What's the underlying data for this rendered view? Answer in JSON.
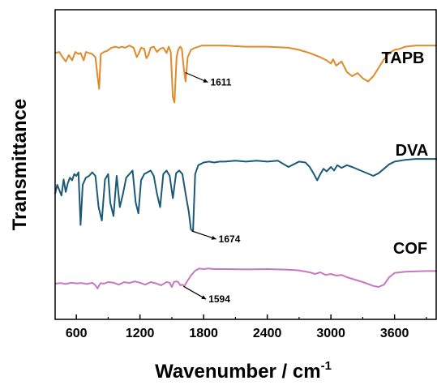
{
  "chart_data": {
    "type": "line",
    "title": "",
    "xlabel": "Wavenumber / cm",
    "xlabel_sup": "-1",
    "ylabel": "Transmittance",
    "xlim": [
      400,
      4000
    ],
    "xticks": [
      600,
      1200,
      1800,
      2400,
      3000,
      3600
    ],
    "y_ticks_shown": false,
    "grid": false,
    "series": [
      {
        "name": "TAPB",
        "color": "#e08a2a",
        "x": [
          400,
          440,
          470,
          500,
          530,
          560,
          590,
          620,
          640,
          670,
          690,
          720,
          750,
          780,
          800,
          815,
          830,
          860,
          890,
          930,
          970,
          1000,
          1030,
          1060,
          1100,
          1140,
          1170,
          1190,
          1210,
          1240,
          1260,
          1280,
          1300,
          1330,
          1360,
          1390,
          1420,
          1450,
          1470,
          1490,
          1510,
          1525,
          1545,
          1560,
          1580,
          1595,
          1615,
          1630,
          1650,
          1680,
          1720,
          1780,
          1850,
          2000,
          2200,
          2400,
          2600,
          2700,
          2800,
          2900,
          2960,
          3000,
          3020,
          3050,
          3100,
          3150,
          3200,
          3250,
          3300,
          3350,
          3400,
          3450,
          3500,
          3550,
          3600,
          3650,
          3700,
          3800,
          3900,
          4000
        ],
        "y": [
          0.92,
          0.93,
          0.88,
          0.84,
          0.9,
          0.85,
          0.93,
          0.91,
          0.92,
          0.85,
          0.93,
          0.92,
          0.91,
          0.88,
          0.7,
          0.58,
          0.91,
          0.93,
          0.94,
          0.97,
          0.98,
          0.97,
          0.98,
          0.97,
          0.99,
          0.97,
          0.88,
          0.92,
          0.97,
          0.96,
          0.87,
          0.9,
          0.97,
          0.98,
          0.93,
          0.96,
          0.97,
          0.92,
          0.98,
          0.93,
          0.5,
          0.45,
          0.88,
          0.95,
          0.98,
          0.96,
          0.75,
          0.65,
          0.88,
          0.95,
          0.97,
          0.99,
          0.99,
          0.99,
          0.98,
          0.98,
          0.97,
          0.95,
          0.92,
          0.88,
          0.85,
          0.82,
          0.86,
          0.8,
          0.84,
          0.74,
          0.7,
          0.73,
          0.68,
          0.65,
          0.7,
          0.78,
          0.86,
          0.92,
          0.95,
          0.96,
          0.98,
          0.99,
          0.99,
          0.99
        ]
      },
      {
        "name": "DVA",
        "color": "#1a5a78",
        "x": [
          400,
          420,
          440,
          460,
          480,
          500,
          520,
          540,
          560,
          580,
          600,
          620,
          640,
          660,
          690,
          720,
          750,
          780,
          810,
          840,
          870,
          900,
          920,
          950,
          980,
          1010,
          1040,
          1070,
          1100,
          1130,
          1160,
          1185,
          1210,
          1240,
          1270,
          1300,
          1330,
          1360,
          1390,
          1420,
          1450,
          1480,
          1510,
          1540,
          1570,
          1600,
          1630,
          1660,
          1680,
          1700,
          1720,
          1750,
          1800,
          1850,
          1900,
          1950,
          2000,
          2100,
          2200,
          2300,
          2400,
          2500,
          2600,
          2650,
          2700,
          2760,
          2800,
          2840,
          2870,
          2900,
          2930,
          2960,
          3000,
          3030,
          3060,
          3100,
          3150,
          3200,
          3300,
          3400,
          3450,
          3500,
          3550,
          3600,
          3700,
          3800,
          3900,
          4000
        ],
        "y": [
          0.6,
          0.7,
          0.64,
          0.58,
          0.76,
          0.62,
          0.72,
          0.78,
          0.75,
          0.82,
          0.8,
          0.84,
          0.25,
          0.7,
          0.78,
          0.8,
          0.84,
          0.8,
          0.45,
          0.3,
          0.76,
          0.82,
          0.5,
          0.35,
          0.8,
          0.45,
          0.6,
          0.78,
          0.82,
          0.86,
          0.5,
          0.38,
          0.75,
          0.82,
          0.84,
          0.86,
          0.8,
          0.6,
          0.45,
          0.82,
          0.86,
          0.8,
          0.55,
          0.83,
          0.86,
          0.82,
          0.6,
          0.4,
          0.2,
          0.18,
          0.82,
          0.92,
          0.95,
          0.96,
          0.95,
          0.96,
          0.96,
          0.97,
          0.96,
          0.97,
          0.96,
          0.97,
          0.9,
          0.93,
          0.96,
          0.95,
          0.9,
          0.82,
          0.75,
          0.82,
          0.88,
          0.85,
          0.9,
          0.86,
          0.92,
          0.89,
          0.92,
          0.9,
          0.85,
          0.8,
          0.83,
          0.88,
          0.93,
          0.96,
          0.98,
          0.99,
          0.99,
          0.99
        ]
      },
      {
        "name": "COF",
        "color": "#c678c0",
        "x": [
          400,
          450,
          500,
          550,
          600,
          650,
          700,
          750,
          780,
          800,
          815,
          830,
          860,
          900,
          950,
          1000,
          1050,
          1100,
          1150,
          1200,
          1250,
          1300,
          1350,
          1400,
          1450,
          1480,
          1500,
          1520,
          1540,
          1560,
          1580,
          1600,
          1620,
          1650,
          1680,
          1720,
          1760,
          1800,
          1850,
          1900,
          2000,
          2200,
          2400,
          2600,
          2700,
          2800,
          2850,
          2900,
          2950,
          3000,
          3050,
          3100,
          3150,
          3200,
          3300,
          3400,
          3450,
          3500,
          3550,
          3600,
          3700,
          3800,
          3900,
          4000
        ],
        "y": [
          0.25,
          0.27,
          0.24,
          0.28,
          0.26,
          0.27,
          0.24,
          0.28,
          0.2,
          0.1,
          0.2,
          0.27,
          0.25,
          0.3,
          0.28,
          0.22,
          0.3,
          0.27,
          0.32,
          0.28,
          0.22,
          0.3,
          0.26,
          0.2,
          0.3,
          0.28,
          0.15,
          0.3,
          0.32,
          0.3,
          0.2,
          0.22,
          0.18,
          0.35,
          0.5,
          0.65,
          0.72,
          0.7,
          0.72,
          0.7,
          0.7,
          0.69,
          0.7,
          0.68,
          0.66,
          0.6,
          0.55,
          0.6,
          0.52,
          0.55,
          0.5,
          0.52,
          0.45,
          0.4,
          0.3,
          0.18,
          0.15,
          0.22,
          0.45,
          0.58,
          0.62,
          0.63,
          0.64,
          0.64
        ]
      }
    ],
    "annotations": [
      {
        "text": "1611",
        "x": 1611,
        "series": "TAPB"
      },
      {
        "text": "1674",
        "x": 1674,
        "series": "DVA"
      },
      {
        "text": "1594",
        "x": 1594,
        "series": "COF"
      }
    ]
  }
}
